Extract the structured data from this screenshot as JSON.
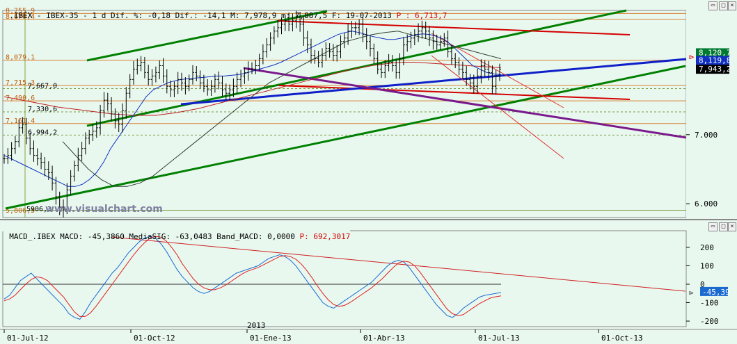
{
  "colors": {
    "background": "#e8f8ef",
    "price_line_green": "#008000",
    "price_line_red": "#d40000",
    "price_line_blue": "#1020c8",
    "price_line_purple": "#7a1a8c",
    "macd": "#1a6ad0",
    "signal": "#e02020",
    "header_highlight": "#d40000"
  },
  "header": {
    "symbol": ".IBEX - IBEX-35 - 1 d Dif. %: -0,18 Dif.: -14,1 M: 7,978,9 m: 7,887,5 F: 19-07-2013",
    "price": "P : 6,713,7"
  },
  "macd_header": {
    "label": "MACD_.IBEX MACD: -45,3860 MediaSIG: -63,0483 Band_MACD: 0,0000",
    "price": "P: 692,3017"
  },
  "watermark": "www.visualchart.com",
  "chart_data": [
    {
      "type": "candlestick",
      "title": "IBEX-35",
      "y_ticks": [
        "6.000",
        "7.000"
      ],
      "ylim": [
        5800,
        8800
      ],
      "price_labels_left": [
        "8,755,9",
        "8,670,4",
        "8,079,1",
        "7,715,3",
        "7,667,0",
        "7,490,6",
        "7,330,6",
        "7,161,4",
        "6,994,2",
        "5,806,5",
        "5906,3"
      ],
      "price_labels_right": [
        "8,120,7",
        "8,119,8",
        "7,943,2"
      ],
      "close_approx": [
        6650,
        6700,
        6800,
        6900,
        7100,
        7150,
        6950,
        6800,
        6700,
        6650,
        6600,
        6500,
        6450,
        6300,
        6100,
        5950,
        5920,
        6200,
        6400,
        6550,
        6700,
        6800,
        6950,
        7000,
        7050,
        7100,
        7350,
        7500,
        7450,
        7300,
        7200,
        7150,
        7350,
        7600,
        7800,
        7950,
        8000,
        8050,
        7900,
        7800,
        7850,
        7900,
        8000,
        7850,
        7700,
        7650,
        7700,
        7800,
        7750,
        7700,
        7800,
        7900,
        7850,
        7750,
        7700,
        7650,
        7700,
        7800,
        7750,
        7650,
        7600,
        7650,
        7700,
        7800,
        7850,
        7900,
        7950,
        7950,
        8000,
        8100,
        8200,
        8300,
        8400,
        8500,
        8550,
        8600,
        8650,
        8600,
        8650,
        8700,
        8600,
        8400,
        8300,
        8150,
        8100,
        8050,
        8150,
        8250,
        8200,
        8150,
        8200,
        8350,
        8400,
        8500,
        8550,
        8550,
        8600,
        8450,
        8350,
        8250,
        8100,
        7950,
        7900,
        8000,
        8050,
        8000,
        7900,
        8100,
        8300,
        8350,
        8400,
        8450,
        8500,
        8550,
        8500,
        8400,
        8350,
        8300,
        8350,
        8400,
        8200,
        8100,
        8050,
        7950,
        7900,
        7800,
        7750,
        7700,
        7850,
        8000,
        7950,
        7900,
        7700,
        7850,
        7950
      ],
      "ma_blue_approx": [
        6700,
        6650,
        6600,
        6550,
        6500,
        6450,
        6400,
        6350,
        6300,
        6250,
        6250,
        6280,
        6350,
        6450,
        6600,
        6800,
        6950,
        7100,
        7250,
        7400,
        7550,
        7650,
        7700,
        7750,
        7780,
        7800,
        7810,
        7820,
        7830,
        7840,
        7850,
        7850,
        7860,
        7870,
        7890,
        7920,
        7950,
        7980,
        8010,
        8050,
        8100,
        8150,
        8200,
        8250,
        8300,
        8350,
        8400,
        8450,
        8480,
        8500,
        8480,
        8450,
        8420,
        8400,
        8380,
        8380,
        8400,
        8420,
        8450,
        8460,
        8450,
        8420,
        8380,
        8300,
        8200,
        8100,
        8000,
        7950,
        7900,
        7880,
        7870
      ],
      "ma_red_approx": [
        7550,
        7520,
        7490,
        7460,
        7430,
        7400,
        7380,
        7360,
        7340,
        7320,
        7300,
        7290,
        7280,
        7280,
        7280,
        7300,
        7320,
        7350,
        7380,
        7420,
        7460,
        7500,
        7540,
        7580,
        7620,
        7660,
        7700,
        7740,
        7780,
        7820,
        7860,
        7900,
        7940,
        7970,
        8000,
        8020,
        8040,
        8050,
        8050,
        8040,
        8030,
        8020,
        8010,
        8000,
        7990,
        7980,
        7970
      ],
      "ma_gray_approx": [
        6900,
        6700,
        6500,
        6350,
        6250,
        6250,
        6300,
        6400,
        6550,
        6700,
        6850,
        7000,
        7150,
        7300,
        7450,
        7600,
        7750,
        7850,
        7950,
        8050,
        8150,
        8250,
        8350,
        8400,
        8450,
        8480,
        8500,
        8450,
        8400,
        8350,
        8300,
        8250,
        8200,
        8150,
        8100
      ],
      "x_labels": [
        "01-Jul-12",
        "01-Oct-12",
        "01-Ene-13",
        "01-Abr-13",
        "01-Jul-13",
        "01-Oct-13"
      ],
      "year_label": "2013"
    },
    {
      "type": "line",
      "title": "MACD_.IBEX",
      "y_ticks": [
        "200",
        "100",
        "0",
        "-100",
        "-200"
      ],
      "ylim": [
        -230,
        290
      ],
      "series": [
        {
          "name": "MACD",
          "values": [
            -80,
            -60,
            -20,
            20,
            40,
            60,
            30,
            0,
            -30,
            -60,
            -90,
            -120,
            -160,
            -180,
            -190,
            -150,
            -100,
            -60,
            -20,
            20,
            60,
            90,
            130,
            170,
            200,
            230,
            250,
            260,
            250,
            220,
            180,
            130,
            80,
            40,
            10,
            -20,
            -40,
            -50,
            -40,
            -20,
            0,
            20,
            40,
            60,
            70,
            80,
            90,
            100,
            120,
            140,
            150,
            160,
            150,
            130,
            100,
            60,
            20,
            -20,
            -60,
            -100,
            -120,
            -130,
            -110,
            -90,
            -70,
            -50,
            -30,
            -10,
            10,
            40,
            70,
            100,
            120,
            130,
            120,
            90,
            50,
            10,
            -30,
            -70,
            -110,
            -140,
            -170,
            -180,
            -160,
            -130,
            -110,
            -90,
            -70,
            -60,
            -55,
            -50,
            -45
          ]
        },
        {
          "name": "MediaSIG",
          "values": [
            -90,
            -80,
            -60,
            -30,
            0,
            25,
            40,
            35,
            20,
            -10,
            -40,
            -70,
            -110,
            -150,
            -175,
            -175,
            -155,
            -120,
            -80,
            -40,
            0,
            40,
            80,
            120,
            160,
            195,
            225,
            250,
            260,
            255,
            235,
            200,
            160,
            110,
            70,
            30,
            0,
            -20,
            -30,
            -30,
            -20,
            -5,
            15,
            35,
            55,
            70,
            80,
            90,
            105,
            120,
            135,
            150,
            155,
            150,
            135,
            110,
            75,
            35,
            -10,
            -50,
            -85,
            -110,
            -120,
            -115,
            -100,
            -80,
            -60,
            -40,
            -20,
            5,
            30,
            60,
            90,
            115,
            125,
            120,
            100,
            65,
            25,
            -15,
            -55,
            -95,
            -135,
            -160,
            -170,
            -165,
            -145,
            -125,
            -105,
            -90,
            -75,
            -68,
            -63
          ]
        }
      ]
    }
  ]
}
